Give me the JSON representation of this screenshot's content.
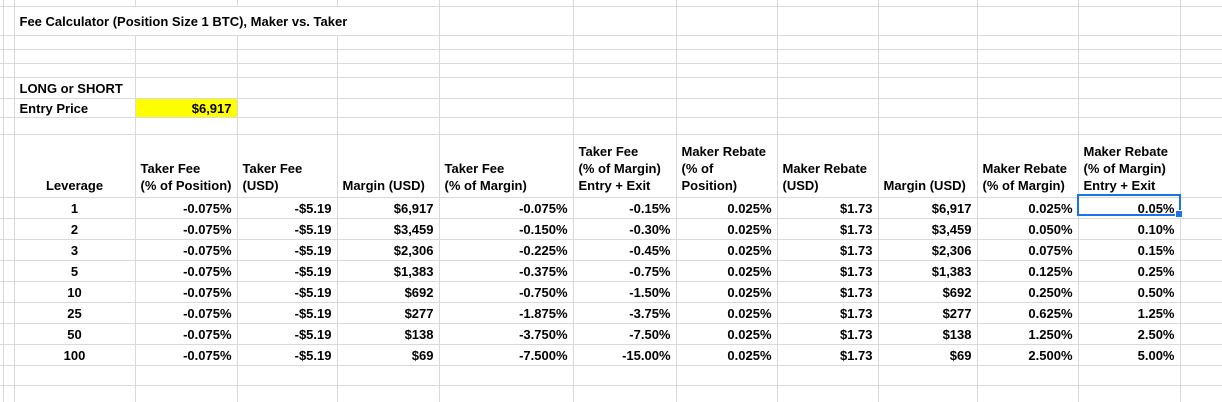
{
  "sheet": {
    "title": "Fee Calculator (Position Size 1 BTC), Maker vs. Taker",
    "inputs": {
      "long_or_short_label": "LONG or SHORT",
      "entry_price_label": "Entry Price",
      "entry_price_value": "$6,917"
    },
    "colors": {
      "negative_fee_red": "#ff0000",
      "rebate_green": "#00cc00",
      "entry_price_highlight": "#ffff00",
      "selection_blue": "#1a73e8",
      "gridline": "#d9d9d9"
    },
    "table": {
      "headers": [
        "Leverage",
        "Taker Fee\n(% of Position)",
        "Taker Fee\n(USD)",
        "Margin (USD)",
        "Taker Fee\n(% of Margin)",
        "Taker Fee\n(% of Margin)\nEntry + Exit",
        "Maker Rebate\n(% of Position)",
        "Maker Rebate\n(USD)",
        "Margin (USD)",
        "Maker Rebate\n(% of Margin)",
        "Maker Rebate\n(% of Margin)\nEntry + Exit"
      ],
      "col_styles": [
        "lev",
        "red",
        "red",
        "blk",
        "red",
        "red",
        "grn",
        "grn",
        "blk",
        "grn",
        "grn"
      ],
      "rows": [
        [
          "1",
          "-0.075%",
          "-$5.19",
          "$6,917",
          "-0.075%",
          "-0.15%",
          "0.025%",
          "$1.73",
          "$6,917",
          "0.025%",
          "0.05%"
        ],
        [
          "2",
          "-0.075%",
          "-$5.19",
          "$3,459",
          "-0.150%",
          "-0.30%",
          "0.025%",
          "$1.73",
          "$3,459",
          "0.050%",
          "0.10%"
        ],
        [
          "3",
          "-0.075%",
          "-$5.19",
          "$2,306",
          "-0.225%",
          "-0.45%",
          "0.025%",
          "$1.73",
          "$2,306",
          "0.075%",
          "0.15%"
        ],
        [
          "5",
          "-0.075%",
          "-$5.19",
          "$1,383",
          "-0.375%",
          "-0.75%",
          "0.025%",
          "$1.73",
          "$1,383",
          "0.125%",
          "0.25%"
        ],
        [
          "10",
          "-0.075%",
          "-$5.19",
          "$692",
          "-0.750%",
          "-1.50%",
          "0.025%",
          "$1.73",
          "$692",
          "0.250%",
          "0.50%"
        ],
        [
          "25",
          "-0.075%",
          "-$5.19",
          "$277",
          "-1.875%",
          "-3.75%",
          "0.025%",
          "$1.73",
          "$277",
          "0.625%",
          "1.25%"
        ],
        [
          "50",
          "-0.075%",
          "-$5.19",
          "$138",
          "-3.750%",
          "-7.50%",
          "0.025%",
          "$1.73",
          "$138",
          "1.250%",
          "2.50%"
        ],
        [
          "100",
          "-0.075%",
          "-$5.19",
          "$69",
          "-7.500%",
          "-15.00%",
          "0.025%",
          "$1.73",
          "$69",
          "2.500%",
          "5.00%"
        ]
      ],
      "selected_cell": {
        "row_leverage": "1",
        "column": "Maker Rebate (% of Margin) Entry + Exit",
        "value": "0.05%"
      }
    }
  }
}
